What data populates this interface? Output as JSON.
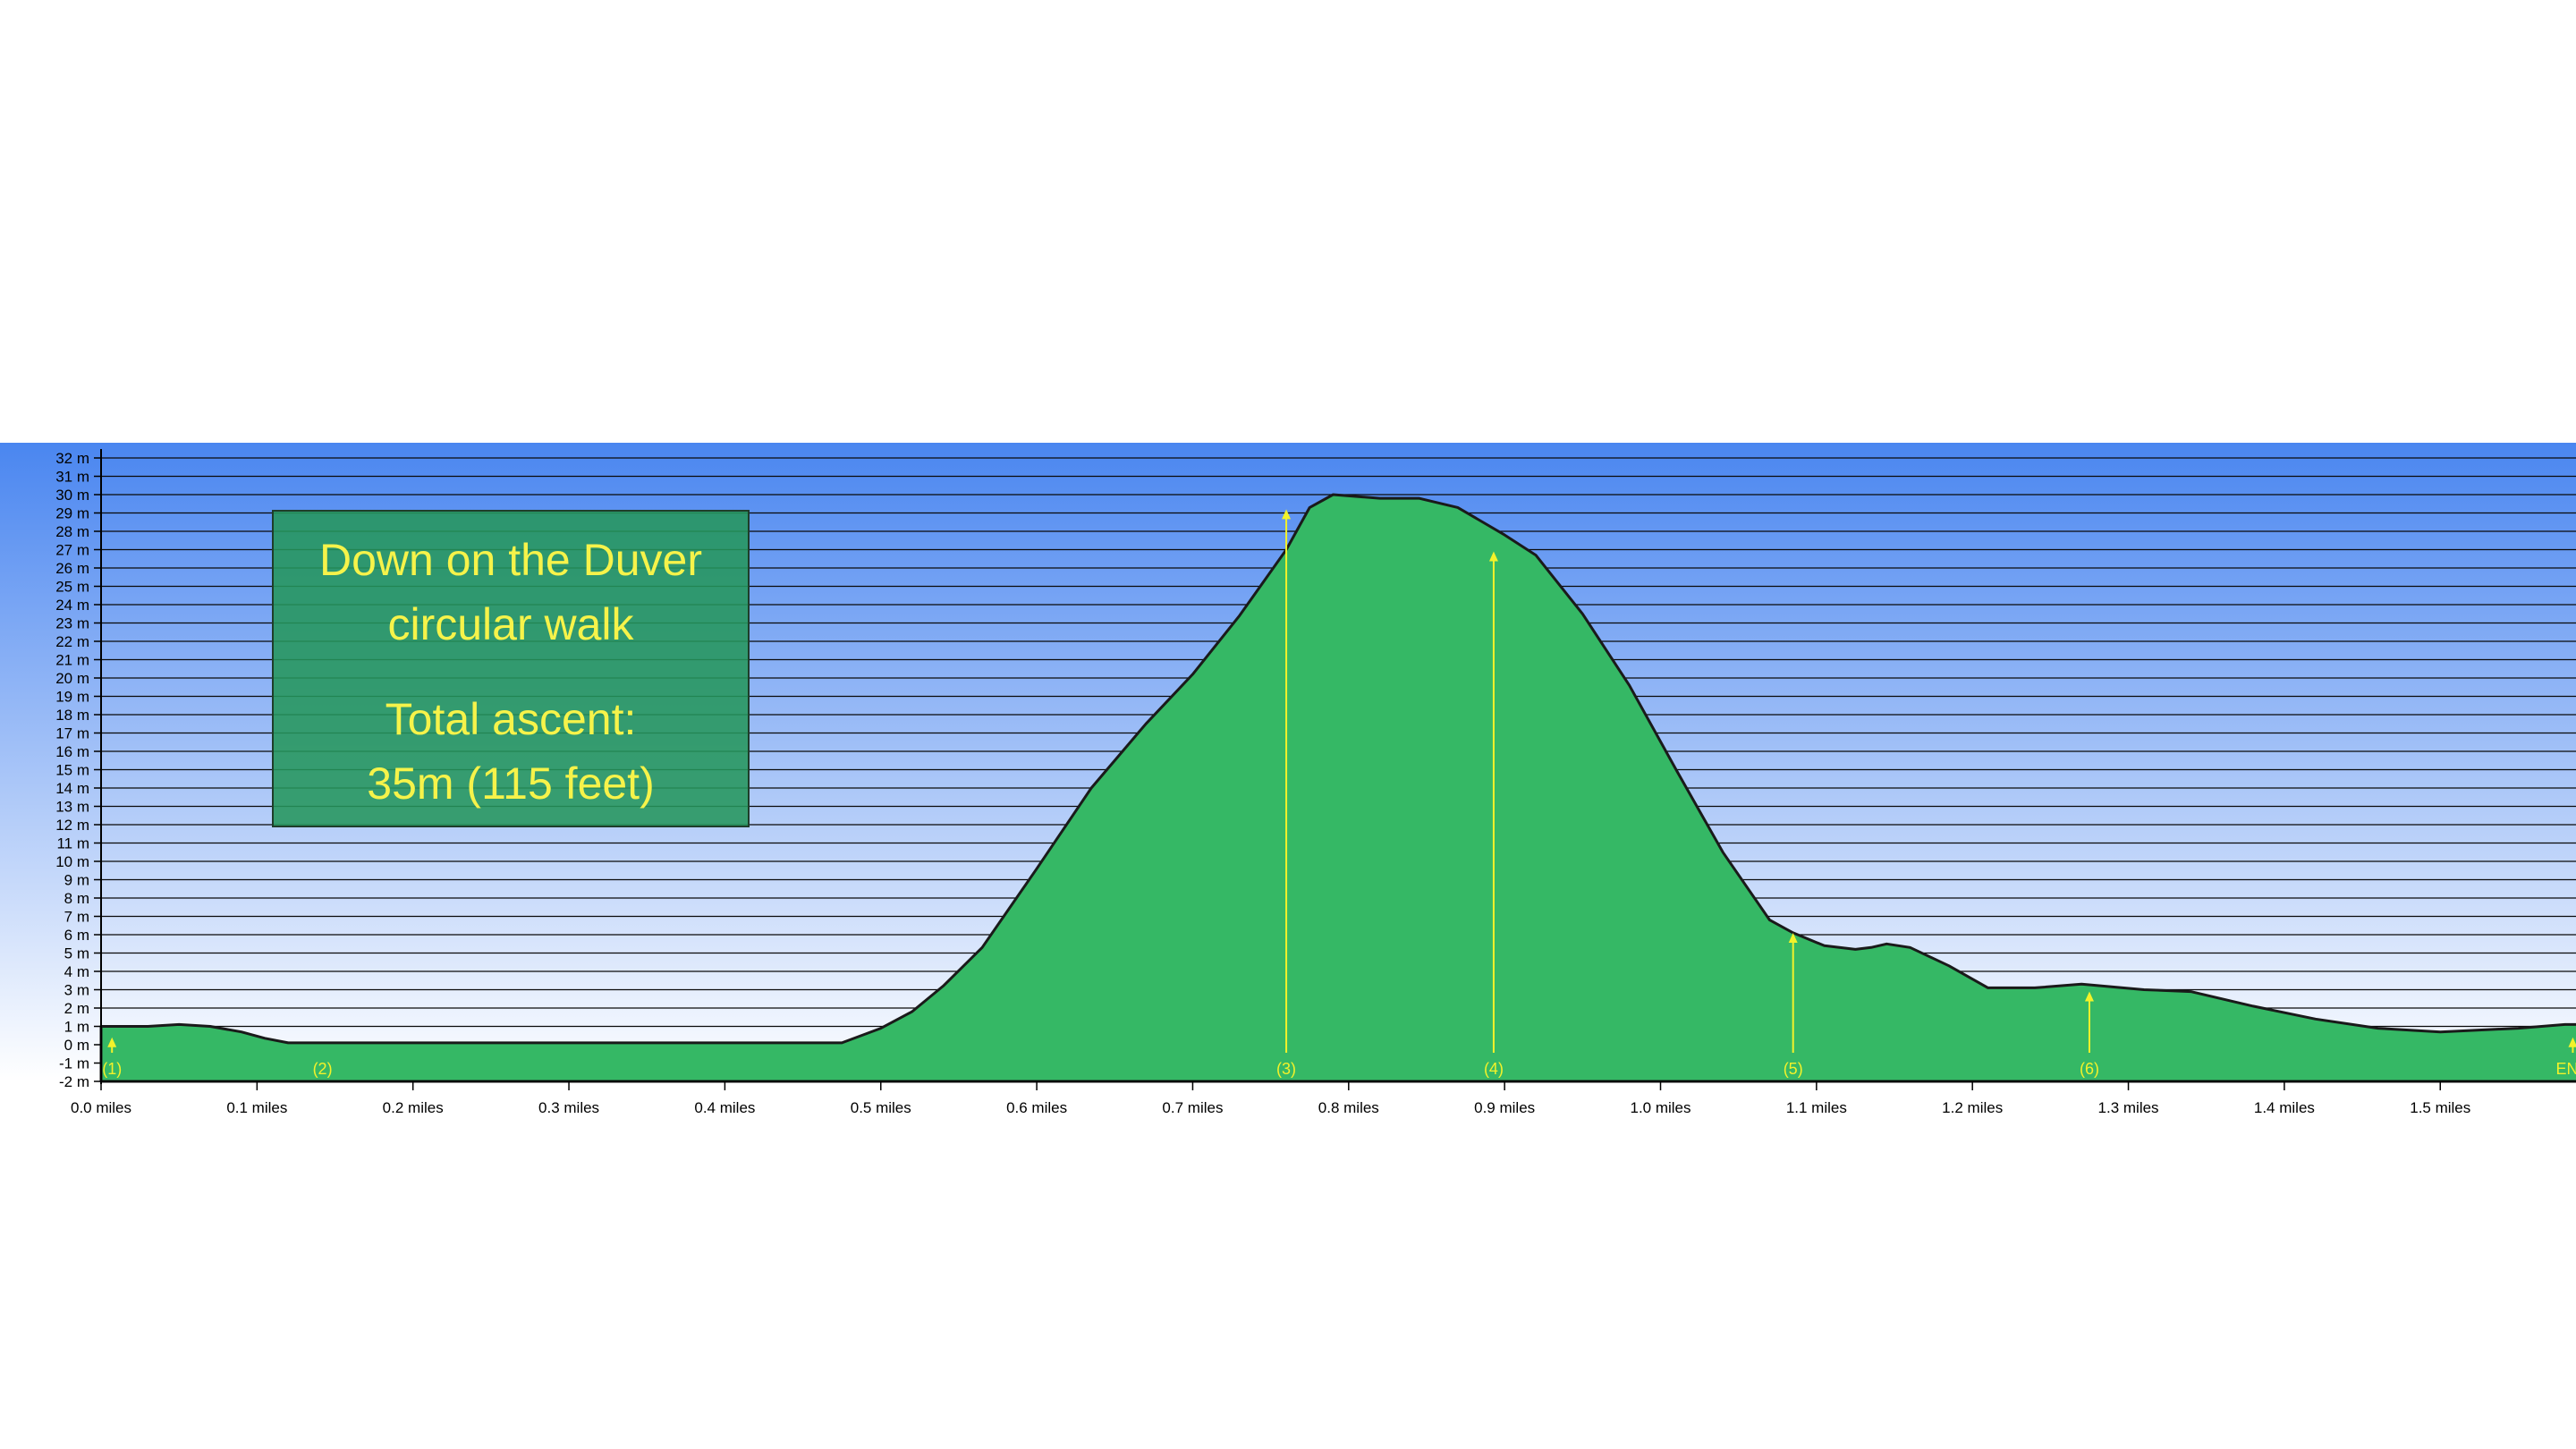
{
  "info_box": {
    "title_line1": "Down on the Duver",
    "title_line2": "circular walk",
    "ascent_line1": "Total ascent:",
    "ascent_line2": "35m (115 feet)"
  },
  "colors": {
    "sky_top": "#4a86f0",
    "sky_bottom": "#ffffff",
    "terrain_fill": "#35b865",
    "terrain_outline": "#1a1a1a",
    "marker": "#f2f22a",
    "box_fill": "#2f9e6a",
    "box_text": "#f6f34a"
  },
  "chart_data": {
    "type": "area",
    "title": "",
    "xlabel": "",
    "ylabel": "",
    "x_unit": "miles",
    "y_unit": "m",
    "xlim": [
      0.0,
      1.59
    ],
    "ylim": [
      -2,
      32
    ],
    "grid": true,
    "x_ticks": [
      "0.0 miles",
      "0.1 miles",
      "0.2 miles",
      "0.3 miles",
      "0.4 miles",
      "0.5 miles",
      "0.6 miles",
      "0.7 miles",
      "0.8 miles",
      "0.9 miles",
      "1.0 miles",
      "1.1 miles",
      "1.2 miles",
      "1.3 miles",
      "1.4 miles",
      "1.5 miles"
    ],
    "y_ticks": [
      "32 m",
      "31 m",
      "30 m",
      "29 m",
      "28 m",
      "27 m",
      "26 m",
      "25 m",
      "24 m",
      "23 m",
      "22 m",
      "21 m",
      "20 m",
      "19 m",
      "18 m",
      "17 m",
      "16 m",
      "15 m",
      "14 m",
      "13 m",
      "12 m",
      "11 m",
      "10 m",
      "9 m",
      "8 m",
      "7 m",
      "6 m",
      "5 m",
      "4 m",
      "3 m",
      "2 m",
      "1 m",
      "0 m",
      "-1 m",
      "-2 m"
    ],
    "series": [
      {
        "x": [
          0.0,
          0.01,
          0.03,
          0.05,
          0.07,
          0.09,
          0.105,
          0.12,
          0.2,
          0.3,
          0.4,
          0.475,
          0.5,
          0.52,
          0.54,
          0.565,
          0.6,
          0.635,
          0.67,
          0.7,
          0.73,
          0.76,
          0.775,
          0.79,
          0.82,
          0.845,
          0.87,
          0.9,
          0.92,
          0.95,
          0.98,
          1.01,
          1.04,
          1.07,
          1.085,
          1.105,
          1.125,
          1.135,
          1.145,
          1.16,
          1.185,
          1.21,
          1.24,
          1.27,
          1.31,
          1.34,
          1.38,
          1.42,
          1.46,
          1.5,
          1.525,
          1.55,
          1.58,
          1.59
        ],
        "y": [
          1.0,
          1.0,
          1.0,
          1.1,
          1.0,
          0.7,
          0.35,
          0.1,
          0.1,
          0.1,
          0.1,
          0.1,
          0.9,
          1.8,
          3.2,
          5.3,
          9.6,
          14.0,
          17.5,
          20.2,
          23.4,
          27.0,
          29.3,
          30.0,
          29.8,
          29.8,
          29.3,
          27.8,
          26.7,
          23.5,
          19.6,
          15.0,
          10.5,
          6.8,
          6.1,
          5.4,
          5.2,
          5.3,
          5.5,
          5.3,
          4.3,
          3.1,
          3.1,
          3.3,
          3.0,
          2.9,
          2.1,
          1.4,
          0.9,
          0.7,
          0.8,
          0.9,
          1.1,
          1.1
        ]
      }
    ],
    "markers": [
      {
        "label": "(1)",
        "x": 0.007,
        "top": 0.4
      },
      {
        "label": "(2)",
        "x": 0.142,
        "top": null
      },
      {
        "label": "(3)",
        "x": 0.76,
        "top": 29.2
      },
      {
        "label": "(4)",
        "x": 0.893,
        "top": 26.9
      },
      {
        "label": "(5)",
        "x": 1.085,
        "top": 6.1
      },
      {
        "label": "(6)",
        "x": 1.275,
        "top": 2.9
      },
      {
        "label": "END",
        "x": 1.585,
        "top": 0.4
      }
    ]
  }
}
